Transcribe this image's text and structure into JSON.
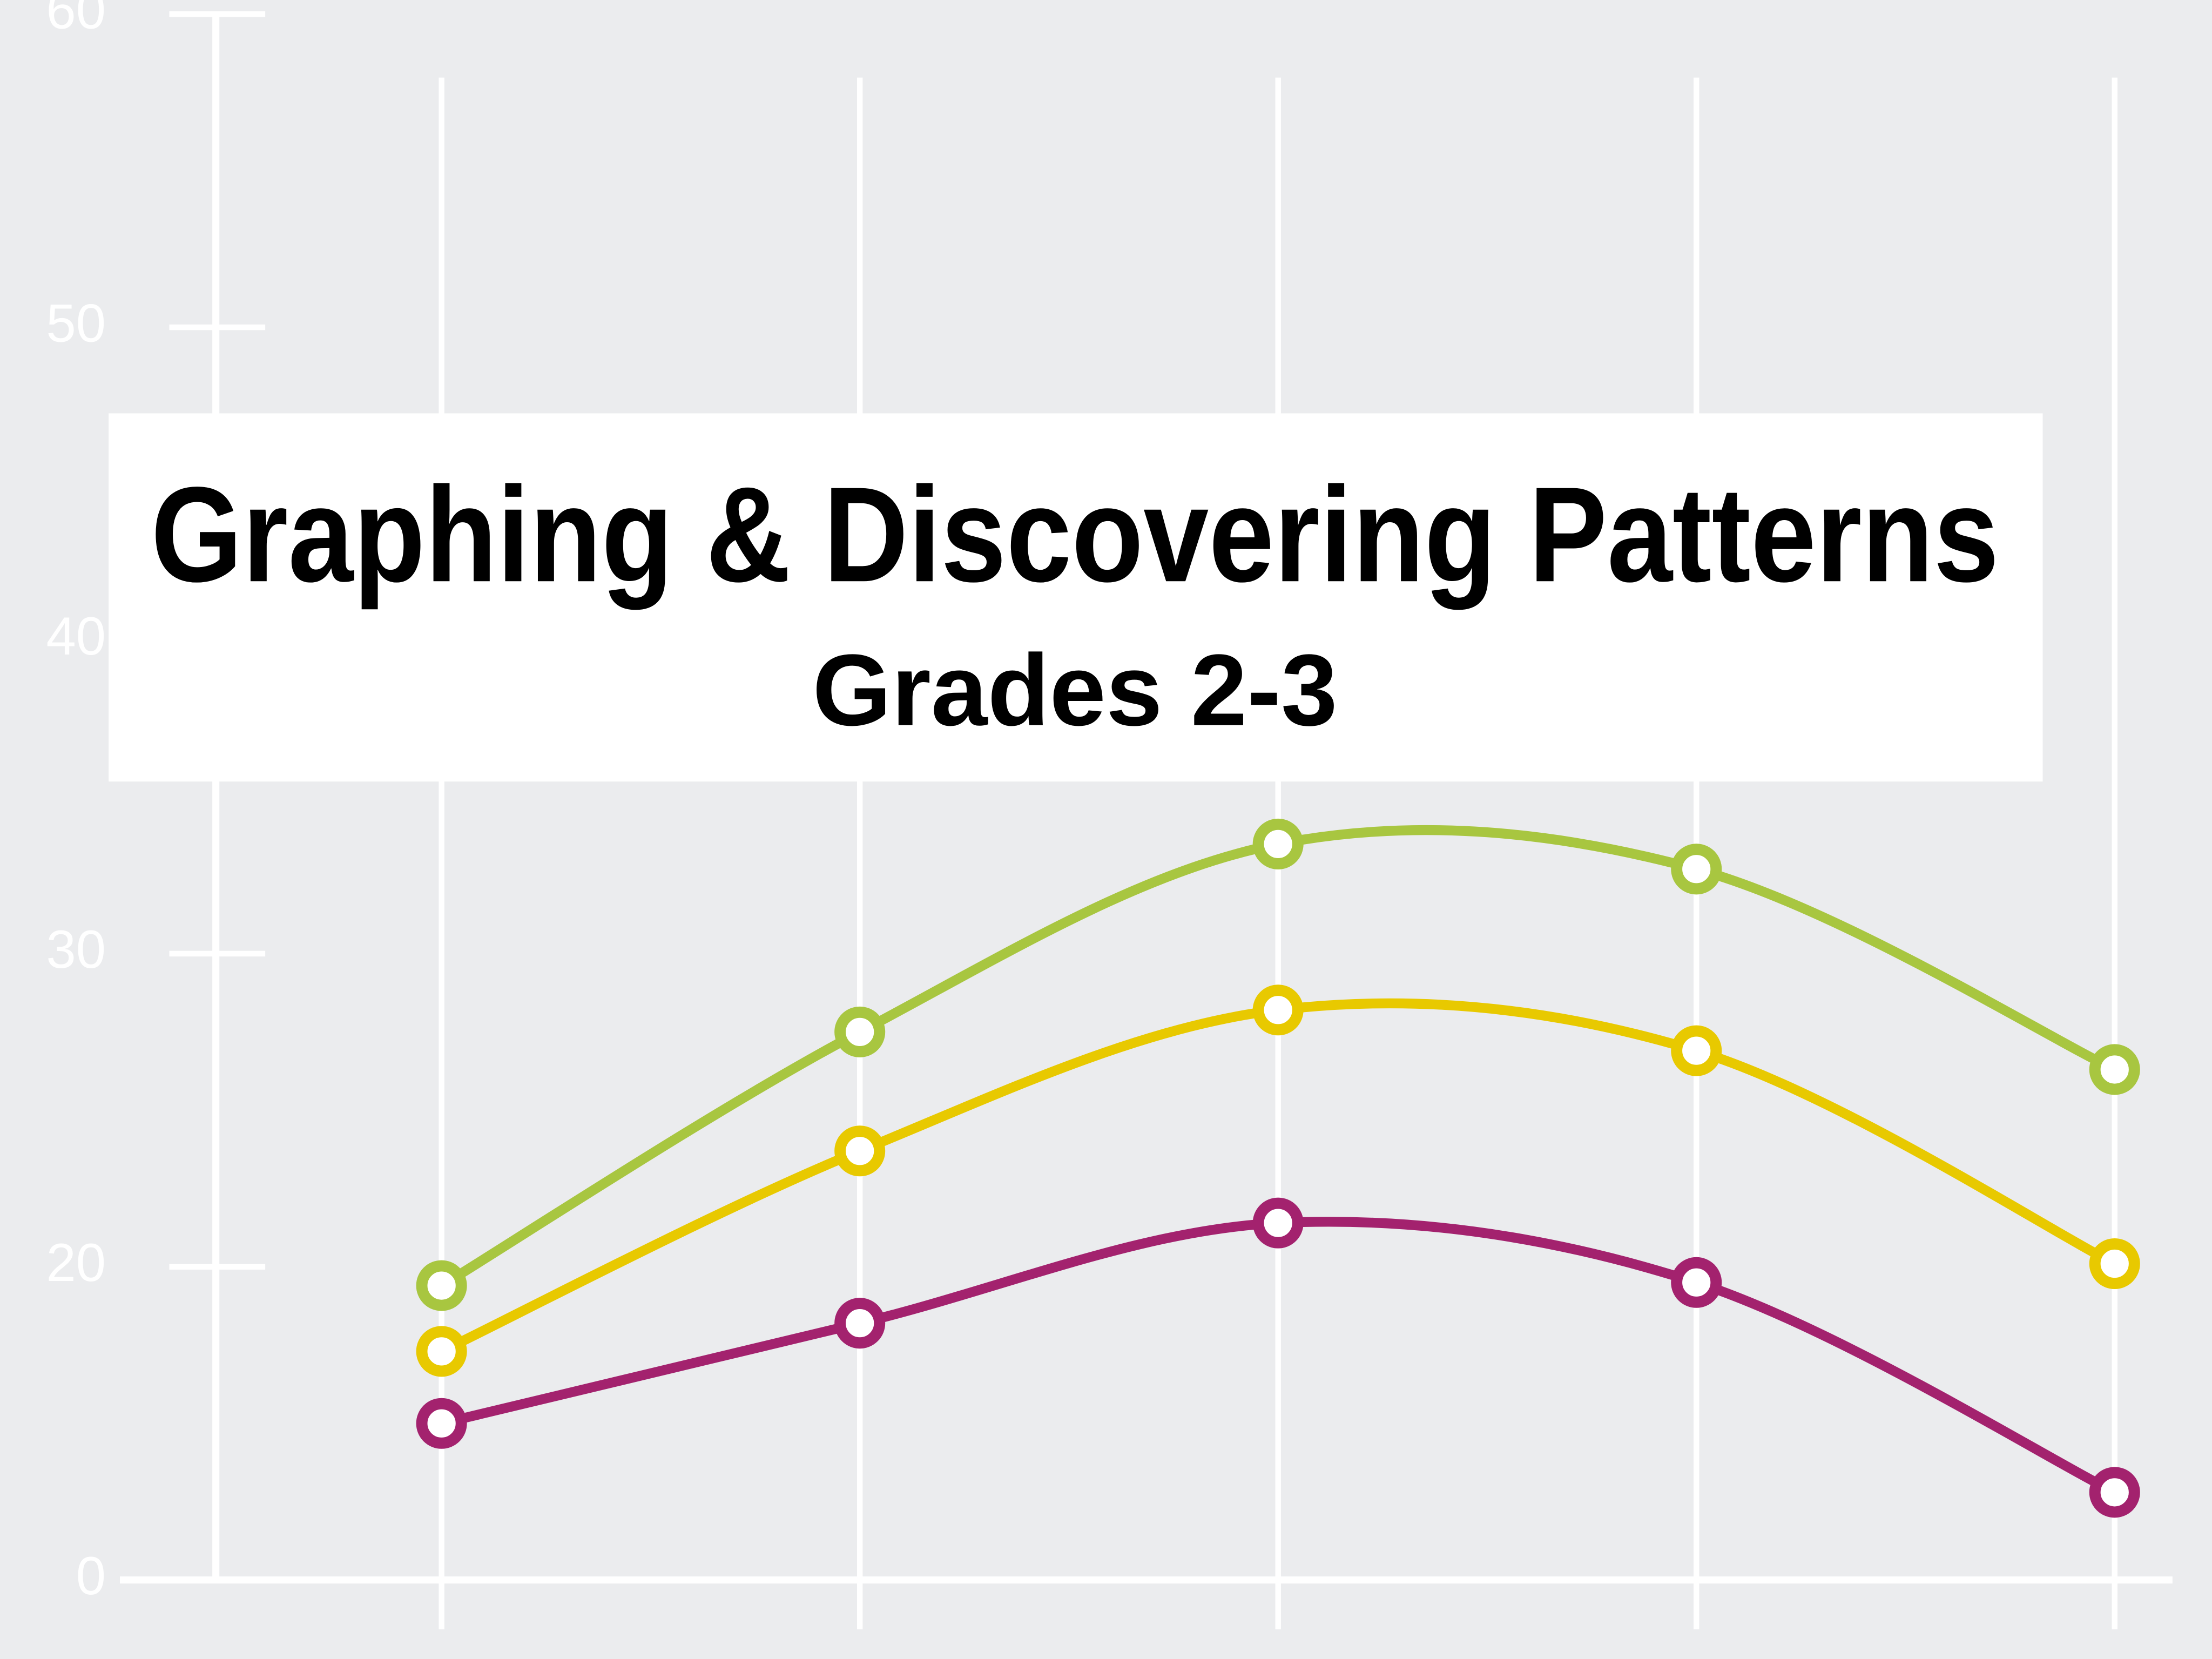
{
  "chart_data": {
    "type": "line",
    "title": "Graphing & Discovering Patterns",
    "subtitle": "Grades 2-3",
    "categories": [
      null,
      null,
      null,
      null,
      null
    ],
    "ylim": [
      10,
      60
    ],
    "yticks": [
      {
        "value": 10,
        "label": "0"
      },
      20,
      30,
      40,
      50,
      60
    ],
    "grid": true,
    "series": [
      {
        "color": "#a8c640",
        "values": [
          19.4,
          27.5,
          33.5,
          32.7,
          26.3
        ]
      },
      {
        "color": "#e8c900",
        "values": [
          17.3,
          23.7,
          28.2,
          26.9,
          20.1
        ]
      },
      {
        "color": "#a3226e",
        "values": [
          15.0,
          18.2,
          21.4,
          19.5,
          12.8
        ]
      }
    ]
  }
}
